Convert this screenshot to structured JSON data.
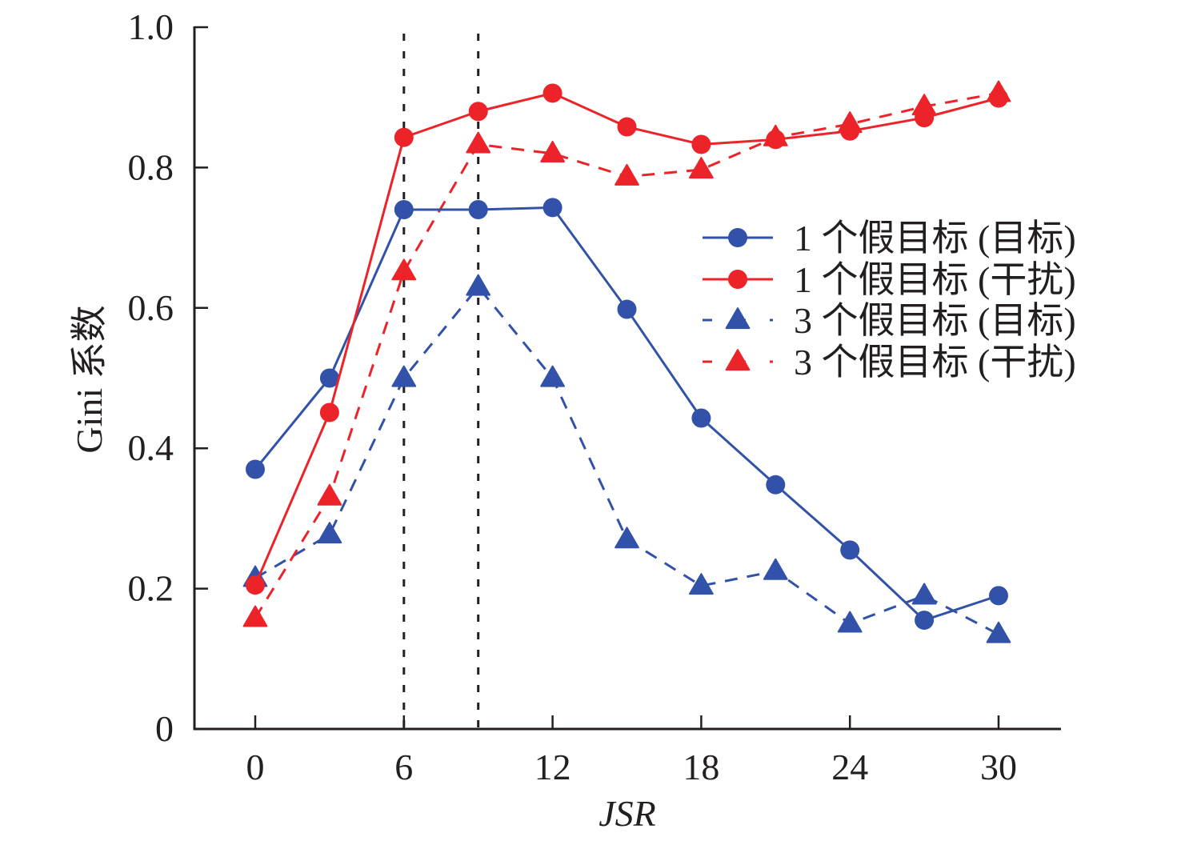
{
  "chart_data": {
    "type": "line",
    "title": "",
    "xlabel": "JSR",
    "ylabel": "Gini 系数",
    "xlim": [
      0,
      30
    ],
    "ylim": [
      0,
      1.0
    ],
    "x": [
      0,
      3,
      6,
      9,
      12,
      15,
      18,
      21,
      24,
      27,
      30
    ],
    "xticks": [
      0,
      6,
      12,
      18,
      24,
      30
    ],
    "xtick_labels": [
      "0",
      "6",
      "12",
      "18",
      "24",
      "30"
    ],
    "yticks": [
      0,
      0.2,
      0.4,
      0.6,
      0.8,
      1.0
    ],
    "ytick_labels": [
      "0",
      "0.2",
      "0.4",
      "0.6",
      "0.8",
      "1.0"
    ],
    "grid": false,
    "legend_position": "right",
    "reference_lines": [
      {
        "type": "vertical",
        "x": 6,
        "style": "dotted",
        "color": "#231f20"
      },
      {
        "type": "vertical",
        "x": 9,
        "style": "dotted",
        "color": "#231f20"
      }
    ],
    "series": [
      {
        "name": "1 个假目标 (目标)",
        "color": "#3152a8",
        "line": "solid",
        "marker": "circle",
        "values": [
          0.37,
          0.5,
          0.74,
          0.74,
          0.743,
          0.598,
          0.443,
          0.348,
          0.255,
          0.155,
          0.19
        ]
      },
      {
        "name": "1 个假目标 (干扰)",
        "color": "#ec2329",
        "line": "solid",
        "marker": "circle",
        "values": [
          0.205,
          0.451,
          0.843,
          0.88,
          0.906,
          0.858,
          0.833,
          0.84,
          0.852,
          0.871,
          0.899
        ]
      },
      {
        "name": "3 个假目标 (目标)",
        "color": "#3152a8",
        "line": "dashed",
        "marker": "triangle",
        "values": [
          0.215,
          0.277,
          0.5,
          0.63,
          0.5,
          0.27,
          0.204,
          0.225,
          0.15,
          0.19,
          0.135
        ]
      },
      {
        "name": "3 个假目标 (干扰)",
        "color": "#ec2329",
        "line": "dashed",
        "marker": "triangle",
        "values": [
          0.158,
          0.331,
          0.652,
          0.833,
          0.82,
          0.787,
          0.797,
          0.843,
          0.862,
          0.887,
          0.906
        ]
      }
    ]
  }
}
